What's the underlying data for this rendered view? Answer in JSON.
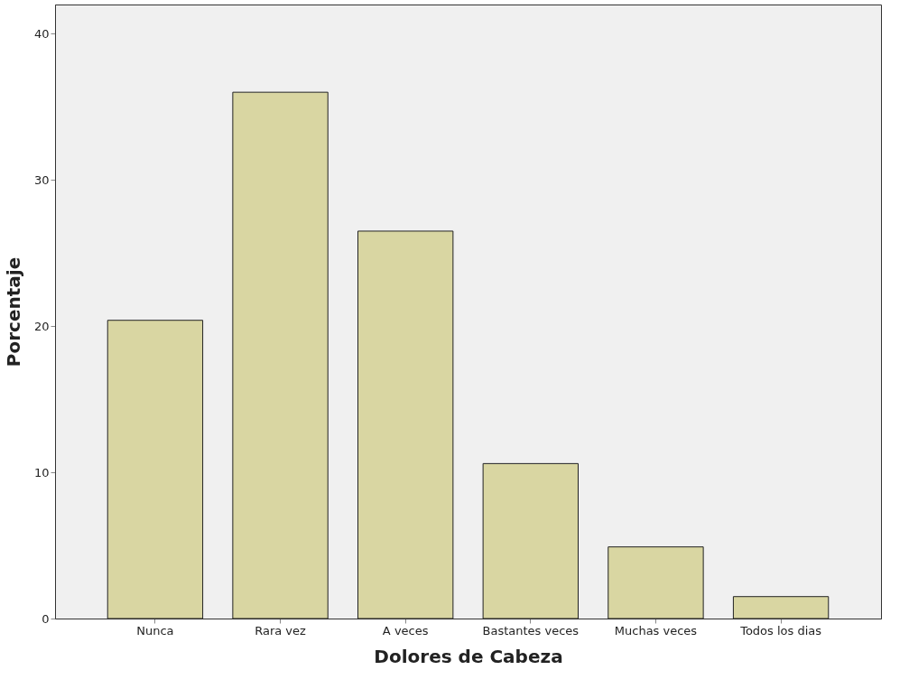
{
  "chart_data": {
    "type": "bar",
    "xlabel": "Dolores de Cabeza",
    "ylabel": "Porcentaje",
    "categories": [
      "Nunca",
      "Rara vez",
      "A veces",
      "Bastantes veces",
      "Muchas veces",
      "Todos los dias"
    ],
    "values": [
      20.4,
      36.0,
      26.5,
      10.6,
      4.9,
      1.5
    ],
    "color": "#d9d6a2",
    "ylim": [
      0,
      42
    ],
    "yticks": [
      0,
      10,
      20,
      30,
      40
    ],
    "grid": false
  }
}
